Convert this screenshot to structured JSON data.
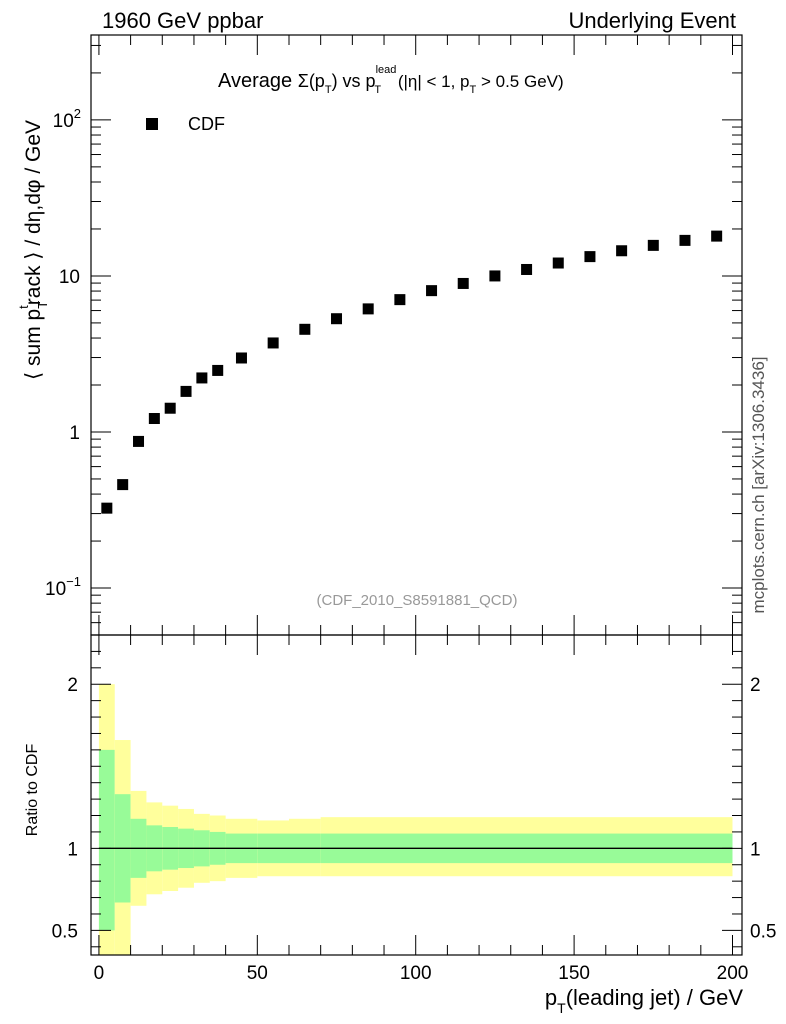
{
  "header": {
    "left": "1960 GeV ppbar",
    "right": "Underlying Event"
  },
  "side_label": "mcplots.cern.ch [arXiv:1306.3436]",
  "chart_data": {
    "type": "scatter",
    "title": "Average Σ(pT) vs pT^lead (|η| < 1, pT > 0.5 GeV)",
    "title_parts": {
      "t1": "Average ",
      "t2": "Σ(p",
      "t3": "T",
      "t4": ") vs p",
      "t5": "lead",
      "t6": "T",
      "t7": " (|η| < 1, p",
      "t8": "T",
      "t9": " > 0.5 GeV)"
    },
    "analysis_label": "(CDF_2010_S8591881_QCD)",
    "legend": {
      "label": "CDF",
      "placement": "top-left"
    },
    "xlabel": "pT(leading jet) / GeV",
    "xlabel_parts": {
      "a": "p",
      "b": "T",
      "c": "(leading jet) / GeV"
    },
    "ylabel": "⟨ sum pT track ⟩ / dη,dφ / GeV",
    "ylabel_parts": {
      "a": "⟨ sum p",
      "b": "T",
      "c": "t",
      "d": "rack ⟩ / dη,dφ / GeV"
    },
    "xlim": [
      -2.5,
      203
    ],
    "ylim": [
      0.05,
      350
    ],
    "yscale": "log",
    "x_ticks": [
      "0",
      "50",
      "100",
      "150",
      "200"
    ],
    "y_ticks": [
      {
        "base": "10",
        "exp": "−1"
      },
      {
        "base": "1",
        "exp": ""
      },
      {
        "base": "10",
        "exp": ""
      },
      {
        "base": "10",
        "exp": "2"
      }
    ],
    "x": [
      2.5,
      7.5,
      12.5,
      17.5,
      22.5,
      27.5,
      32.5,
      37.5,
      45,
      55,
      65,
      75,
      85,
      95,
      105,
      115,
      125,
      135,
      145,
      155,
      165,
      175,
      185,
      195
    ],
    "y": [
      0.325,
      0.46,
      0.87,
      1.22,
      1.42,
      1.82,
      2.22,
      2.48,
      2.98,
      3.72,
      4.55,
      5.32,
      6.15,
      7.05,
      8.05,
      8.95,
      10.0,
      11.0,
      12.1,
      13.3,
      14.5,
      15.7,
      16.9,
      18.0
    ],
    "ratio": {
      "ylabel": "Ratio to CDF",
      "ylim": [
        0.35,
        2.3
      ],
      "y_ticks": [
        "0.5",
        "1",
        "2"
      ],
      "bins": [
        {
          "x0": 0,
          "x1": 5,
          "inner": [
            0.5,
            1.6
          ],
          "outer": [
            0.35,
            2.0
          ]
        },
        {
          "x0": 5,
          "x1": 10,
          "inner": [
            0.67,
            1.33
          ],
          "outer": [
            0.35,
            1.66
          ]
        },
        {
          "x0": 10,
          "x1": 15,
          "inner": [
            0.82,
            1.18
          ],
          "outer": [
            0.65,
            1.35
          ]
        },
        {
          "x0": 15,
          "x1": 20,
          "inner": [
            0.86,
            1.14
          ],
          "outer": [
            0.72,
            1.28
          ]
        },
        {
          "x0": 20,
          "x1": 25,
          "inner": [
            0.87,
            1.13
          ],
          "outer": [
            0.74,
            1.26
          ]
        },
        {
          "x0": 25,
          "x1": 30,
          "inner": [
            0.88,
            1.12
          ],
          "outer": [
            0.76,
            1.24
          ]
        },
        {
          "x0": 30,
          "x1": 35,
          "inner": [
            0.89,
            1.11
          ],
          "outer": [
            0.79,
            1.21
          ]
        },
        {
          "x0": 35,
          "x1": 40,
          "inner": [
            0.9,
            1.1
          ],
          "outer": [
            0.8,
            1.2
          ]
        },
        {
          "x0": 40,
          "x1": 50,
          "inner": [
            0.91,
            1.09
          ],
          "outer": [
            0.82,
            1.18
          ]
        },
        {
          "x0": 50,
          "x1": 60,
          "inner": [
            0.91,
            1.09
          ],
          "outer": [
            0.83,
            1.17
          ]
        },
        {
          "x0": 60,
          "x1": 70,
          "inner": [
            0.91,
            1.09
          ],
          "outer": [
            0.83,
            1.18
          ]
        },
        {
          "x0": 70,
          "x1": 200,
          "inner": [
            0.91,
            1.09
          ],
          "outer": [
            0.83,
            1.19
          ]
        }
      ]
    }
  },
  "colors": {
    "inner_band": "#98fb98",
    "outer_band": "#ffff9c",
    "marker": "#000000"
  }
}
